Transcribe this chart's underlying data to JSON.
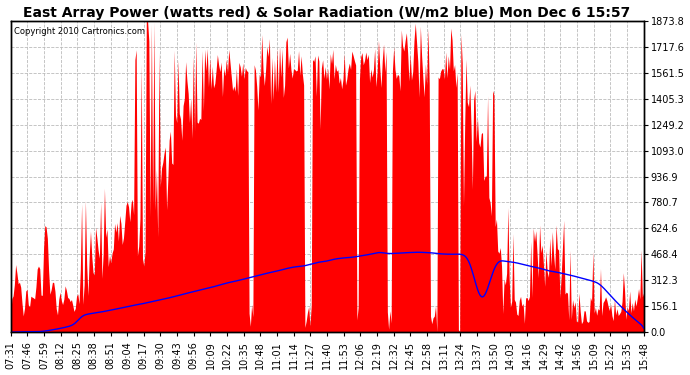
{
  "title": "East Array Power (watts red) & Solar Radiation (W/m2 blue) Mon Dec 6 15:57",
  "copyright_text": "Copyright 2010 Cartronics.com",
  "y_max": 1873.8,
  "y_min": 0.0,
  "y_ticks": [
    0.0,
    156.1,
    312.3,
    468.4,
    624.6,
    780.7,
    936.9,
    1093.0,
    1249.2,
    1405.3,
    1561.5,
    1717.6,
    1873.8
  ],
  "x_labels": [
    "07:31",
    "07:46",
    "07:59",
    "08:12",
    "08:25",
    "08:38",
    "08:51",
    "09:04",
    "09:17",
    "09:30",
    "09:43",
    "09:56",
    "10:09",
    "10:22",
    "10:35",
    "10:48",
    "11:01",
    "11:14",
    "11:27",
    "11:40",
    "11:53",
    "12:06",
    "12:19",
    "12:32",
    "12:45",
    "12:58",
    "13:11",
    "13:24",
    "13:37",
    "13:50",
    "14:03",
    "14:16",
    "14:29",
    "14:42",
    "14:56",
    "15:09",
    "15:22",
    "15:35",
    "15:48"
  ],
  "bg_color": "#ffffff",
  "plot_bg_color": "#ffffff",
  "red_color": "#ff0000",
  "blue_color": "#0000ff",
  "grid_color": "#bbbbbb",
  "title_fontsize": 10,
  "tick_fontsize": 7
}
